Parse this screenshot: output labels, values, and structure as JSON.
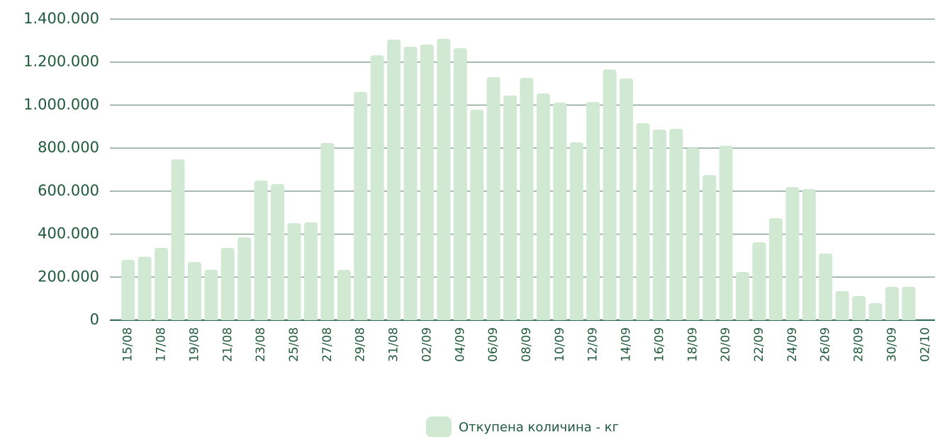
{
  "chart_data": {
    "type": "bar",
    "categories": [
      "15/08",
      null,
      "17/08",
      null,
      "19/08",
      null,
      "21/08",
      null,
      "23/08",
      null,
      "25/08",
      null,
      "27/08",
      null,
      "29/08",
      null,
      "31/08",
      null,
      "02/09",
      null,
      "04/09",
      null,
      "06/09",
      null,
      "08/09",
      null,
      "10/09",
      null,
      "12/09",
      null,
      "14/09",
      null,
      "16/09",
      null,
      "18/09",
      null,
      "20/09",
      null,
      "22/09",
      null,
      "24/09",
      null,
      "26/09",
      null,
      "28/09",
      null,
      "30/09",
      null,
      "02/10"
    ],
    "series": [
      {
        "name": "Откупена количина - кг",
        "color": "#d1e9d2",
        "values": [
          280000,
          295000,
          336000,
          748000,
          270000,
          234000,
          336000,
          385000,
          649000,
          633000,
          451000,
          455000,
          824000,
          234000,
          1061000,
          1232000,
          1305000,
          1272000,
          1282000,
          1308000,
          1265000,
          979000,
          1130000,
          1045000,
          1127000,
          1054000,
          1012000,
          827000,
          1015000,
          1166000,
          1124000,
          916000,
          886000,
          890000,
          801000,
          675000,
          811000,
          224000,
          362000,
          474000,
          619000,
          610000,
          310000,
          135000,
          112000,
          79000,
          155000,
          155000,
          null
        ]
      }
    ],
    "ylim": [
      0,
      1400000
    ],
    "yticks": [
      0,
      {
        "value": 200000,
        "label": "200.000"
      },
      {
        "value": 400000,
        "label": "400.000"
      },
      {
        "value": 600000,
        "label": "600.000"
      },
      {
        "value": 800000,
        "label": "800.000"
      },
      {
        "value": 1000000,
        "label": "1.000.000"
      },
      {
        "value": 1200000,
        "label": "1.200.000"
      },
      {
        "value": 1400000,
        "label": "1.400.000"
      }
    ],
    "grid": true,
    "legend": "bottom"
  }
}
